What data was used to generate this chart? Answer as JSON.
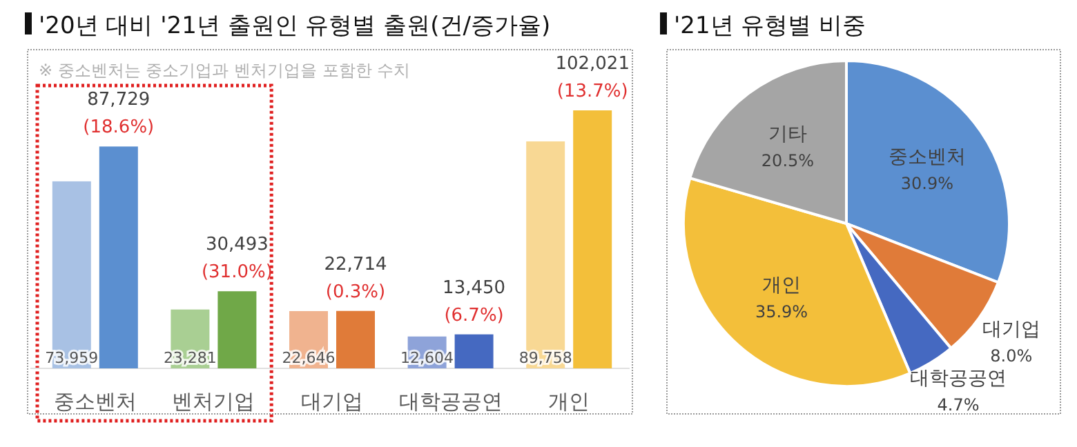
{
  "chart_data": [
    {
      "type": "bar",
      "title": "'20년 대비 '21년 출원인 유형별 출원(건/증가율)",
      "categories": [
        "중소벤처",
        "벤처기업",
        "대기업",
        "대학공공연",
        "개인"
      ],
      "series": [
        {
          "colors": [
            "#a8c1e4",
            "#a9cf93",
            "#f0b38f",
            "#8ea3d9",
            "#f8d894"
          ],
          "values": [
            73959,
            23281,
            22646,
            12604,
            89758
          ],
          "value_labels": [
            "73,959",
            "23,281",
            "22,646",
            "12,604",
            "89,758"
          ]
        },
        {
          "colors": [
            "#5b8fd0",
            "#70a848",
            "#e07b39",
            "#4569c1",
            "#f3bf3a"
          ],
          "values": [
            87729,
            30493,
            22714,
            13450,
            102021
          ],
          "value_labels": [
            "87,729",
            "30,493",
            "22,714",
            "13,450",
            "102,021"
          ]
        }
      ],
      "annotations": [
        "※ 중소벤처는 중소기업과 벤처기업을 포함한 수치",
        {
          "text": "(18.6%)",
          "x": "중소벤처",
          "y": 87729
        },
        {
          "text": "(31.0%)",
          "x": "벤처기업",
          "y": 30493
        },
        {
          "text": "(0.3%)",
          "x": "대기업",
          "y": 22714
        },
        {
          "text": "(6.7%)",
          "x": "대학공공연",
          "y": 13450
        },
        {
          "text": "(13.7%)",
          "x": "개인",
          "y": 102021
        }
      ],
      "subtitle": null
    },
    {
      "type": "pie",
      "title": "'21년 유형별 비중",
      "categories": [
        "중소벤처",
        "대기업",
        "대학공공연",
        "개인",
        "기타"
      ],
      "values": [
        30.9,
        8.0,
        4.7,
        35.9,
        20.5
      ],
      "value_labels": [
        "30.9%",
        "8.0%",
        "4.7%",
        "35.9%",
        "20.5%"
      ],
      "colors": [
        "#5b8fd0",
        "#e07b39",
        "#4569c1",
        "#f3bf3a",
        "#a5a5a5"
      ]
    }
  ]
}
